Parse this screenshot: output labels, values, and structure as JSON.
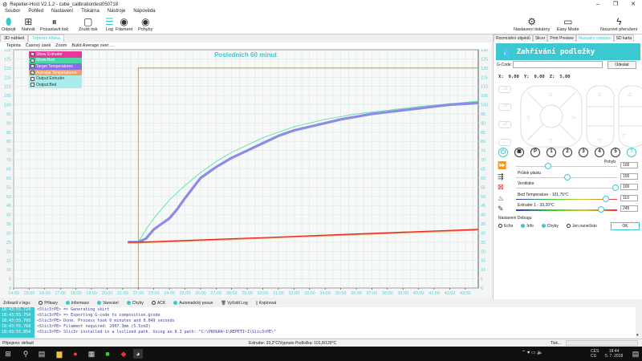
{
  "window": {
    "title": "Repetier-Host V2.1.2 - cube_calibrationtest050718",
    "controls": [
      "–",
      "❐",
      "✕"
    ]
  },
  "menu": [
    "Soubor",
    "Pohled",
    "Nastavení",
    "Tiskárna",
    "Nástroje",
    "Nápověda"
  ],
  "toolbar": {
    "left": [
      {
        "label": "Odpojit",
        "icon": "plug-icon"
      },
      {
        "label": "Nahrát",
        "icon": "load-file-icon"
      },
      {
        "label": "Pozastavit tisk",
        "icon": "pause-icon"
      },
      {
        "label": "Zrušit tisk",
        "icon": "stop-icon"
      },
      {
        "label": "Log",
        "icon": "log-list-icon"
      },
      {
        "label": "Filament",
        "icon": "eye-icon"
      },
      {
        "label": "Pohyby",
        "icon": "eye-icon"
      }
    ],
    "right": [
      {
        "label": "Nastavení tiskárny",
        "icon": "gear-icon"
      },
      {
        "label": "Easy Mode",
        "icon": "easy-mode-icon"
      },
      {
        "label": "Nouzové přerušení",
        "icon": "lightning-icon"
      }
    ]
  },
  "main_tabs": [
    {
      "label": "3D náhled",
      "active": false
    },
    {
      "label": "Teplotní křivka",
      "active": true
    }
  ],
  "chart_menu": [
    "Teplota",
    "Časový úsek",
    "Zoom",
    "Build Average over ..."
  ],
  "legend": [
    {
      "label": "Show Extruder",
      "color": "#e8379a",
      "checked": true
    },
    {
      "label": "Show Bed",
      "color": "#4fd6a8",
      "checked": true
    },
    {
      "label": "Target Temperatures",
      "color": "#8a6fe0",
      "checked": true
    },
    {
      "label": "Average Temperatures",
      "color": "#f0a060",
      "checked": true
    },
    {
      "label": "Output Extruder",
      "color": "#a8ecec",
      "checked": false
    },
    {
      "label": "Output Bed",
      "color": "#a8ecec",
      "checked": false
    }
  ],
  "chart_data": {
    "type": "line",
    "title": "Posledních 60 minut",
    "xlim": [
      "14:00",
      "43:50"
    ],
    "ylim": [
      0,
      130
    ],
    "yticks": [
      0,
      5,
      10,
      15,
      20,
      25,
      30,
      35,
      40,
      45,
      50,
      55,
      60,
      65,
      70,
      75,
      80,
      85,
      90,
      95,
      100,
      105,
      110,
      115,
      120,
      125,
      130
    ],
    "xticks": [
      "14:00",
      "15:00",
      "16:00",
      "17:00",
      "18:00",
      "19:00",
      "20:00",
      "21:00",
      "22:00",
      "23:00",
      "24:00",
      "25:00",
      "26:00",
      "27:00",
      "28:00",
      "29:00",
      "30:00",
      "31:00",
      "32:00",
      "33:00",
      "34:00",
      "35:00",
      "36:00",
      "37:00",
      "38:00",
      "39:00",
      "40:00",
      "41:00",
      "42:00",
      "43:00"
    ],
    "grid": true,
    "series": [
      {
        "color": "#9a9060",
        "x": [
          "22:00",
          "22:00",
          "43:50"
        ],
        "y": [
          0,
          120,
          120
        ]
      },
      {
        "color": "#5fe0b0",
        "x": [
          "21:20",
          "22:00",
          "22:30",
          "23:00",
          "24:00",
          "25:00",
          "26:00",
          "27:00",
          "28:00",
          "29:00",
          "30:00",
          "31:00",
          "32:00",
          "33:00",
          "34:00",
          "35:00",
          "36:00",
          "38:00",
          "40:00",
          "42:00",
          "43:50"
        ],
        "y": [
          25,
          25,
          32,
          38,
          48,
          56,
          63,
          69,
          74,
          78,
          82,
          85,
          88,
          90,
          92,
          93.5,
          95,
          97,
          99,
          100.5,
          102
        ]
      },
      {
        "color": "#8c8ce6",
        "x": [
          "21:20",
          "22:00",
          "22:30",
          "23:00",
          "23:30",
          "24:00",
          "24:30",
          "25:00",
          "26:00",
          "27:00",
          "28:00",
          "29:00",
          "30:00",
          "31:00",
          "32:00",
          "33:00",
          "34:00",
          "35:00",
          "36:00",
          "37:00",
          "38:00",
          "39:00",
          "40:00",
          "41:00",
          "42:00",
          "43:00",
          "43:50"
        ],
        "y": [
          25,
          25,
          27,
          32,
          35,
          38,
          43,
          49,
          60,
          66,
          71,
          75,
          79,
          83,
          86,
          88,
          90,
          92,
          93.5,
          95,
          96,
          97,
          98,
          99,
          100,
          100.5,
          101
        ]
      },
      {
        "color": "#f0a060",
        "x": [
          "21:20",
          "22:00",
          "43:50"
        ],
        "y": [
          24.6,
          24.6,
          31.6
        ]
      },
      {
        "color": "#e82020",
        "x": [
          "21:20",
          "22:00",
          "30:00",
          "36:00",
          "43:50"
        ],
        "y": [
          25,
          25,
          27.5,
          29.5,
          32
        ]
      }
    ]
  },
  "right_panel": {
    "tabs": [
      {
        "label": "Rozmístění objektů",
        "active": false
      },
      {
        "label": "Slicer",
        "active": false
      },
      {
        "label": "Print Preview",
        "active": false
      },
      {
        "label": "Manuální ovládání",
        "active": true
      },
      {
        "label": "SD karta",
        "active": false
      }
    ],
    "header": "Zahřívání podložky",
    "gcode_label": "G-Code:",
    "gcode_value": "",
    "send_label": "Odeslat",
    "pos": {
      "x_label": "X:",
      "x": "0,00",
      "y_label": "Y:",
      "y": "0,00",
      "z_label": "Z:",
      "z": "5,00"
    },
    "home_buttons": [
      "X",
      "Y",
      "Z",
      ""
    ],
    "buttons": [
      "P",
      "1",
      "2",
      "3",
      "4",
      "5",
      "?"
    ],
    "sliders": [
      {
        "label": "Pohyb",
        "value": "100",
        "level": 0.3,
        "icon": "fast-forward-icon"
      },
      {
        "label": "Průtok plastu",
        "value": "100",
        "level": 0.5,
        "icon": "flow-icon"
      },
      {
        "label": "Ventilátor",
        "value": "100",
        "level": 1.0,
        "icon": "fan-off-icon"
      },
      {
        "label": "Bed Temperature - 101,75°C",
        "value": "110",
        "level": 0.9,
        "icon": "bed-heat-icon"
      },
      {
        "label": "Extruder 1 - 33,20°C",
        "value": "245",
        "level": 0.85,
        "icon": "extruder-icon"
      }
    ],
    "debug_label": "Nastavení Debugu",
    "debug": [
      {
        "label": "Echo",
        "on": false
      },
      {
        "label": "Info",
        "on": true
      },
      {
        "label": "Chyby",
        "on": true
      },
      {
        "label": "Jen nanečisto",
        "on": false
      }
    ],
    "ok_label": "OK"
  },
  "log_bar": {
    "label": "Zobrazit v logu:",
    "items": [
      {
        "label": "Příkazy",
        "on": false
      },
      {
        "label": "Informace",
        "on": true
      },
      {
        "label": "Varování",
        "on": true
      },
      {
        "label": "Chyby",
        "on": true
      },
      {
        "label": "ACK",
        "on": false
      },
      {
        "label": "Automatický posun",
        "on": true
      }
    ],
    "clear": "Vyčistit Log",
    "copy": "Kopírovat"
  },
  "log": [
    {
      "t": "18:43:55.724",
      "m": "<Slic3rPE> => Generating skirt"
    },
    {
      "t": "18:43:55.754",
      "m": "<Slic3rPE> => Exporting G-code to composition.gcode"
    },
    {
      "t": "18:43:55.760",
      "m": "<Slic3rPE> Done. Process took 0 minutes and 0.049 seconds"
    },
    {
      "t": "18:43:55.768",
      "m": "<Slic3rPE> Filament required: 2007.3mm (5.5cm3)"
    },
    {
      "t": "18:43:55.854",
      "m": "<Slic3rPE> Slic3r installed in a loclized path. Using an 8.3 path: \"C:\\PROGRA~1\\REPETI~1\\Slic3rPE\\\""
    }
  ],
  "status": {
    "left": "Připojeno: default",
    "center": "Extruder: 33,2°C/Vypnuto Podložka: 101,8/120°C",
    "right": "Tisk..."
  },
  "taskbar": {
    "lang1": "CES",
    "lang2": "CS",
    "time": "18:44",
    "date": "5. 7. 2018"
  }
}
